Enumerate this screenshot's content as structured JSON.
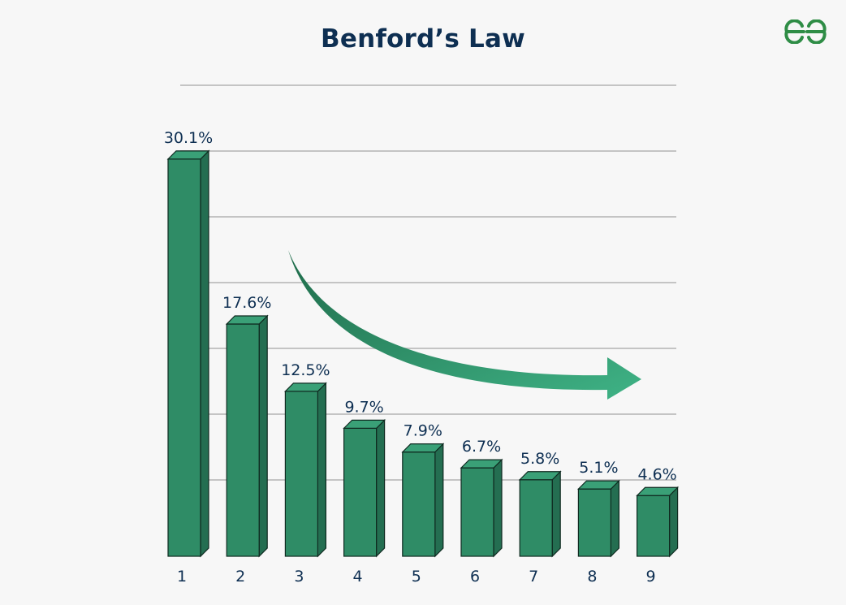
{
  "page": {
    "title": "Benford’s Law",
    "logo_icon": "geeksforgeeks-logo-icon"
  },
  "colors": {
    "bar_front": "#2f8c66",
    "bar_top": "#3aa077",
    "bar_side": "#246e51",
    "bar_edge": "#0f2a20",
    "grid": "#c4c4c4",
    "text": "#0e2f52",
    "arrow_start": "#1f6b4a",
    "arrow_end": "#3fb386",
    "logo": "#2f8d46"
  },
  "chart_data": {
    "type": "bar",
    "title": "Benford’s Law",
    "categories": [
      "1",
      "2",
      "3",
      "4",
      "5",
      "6",
      "7",
      "8",
      "9"
    ],
    "values": [
      30.1,
      17.6,
      12.5,
      9.7,
      7.9,
      6.7,
      5.8,
      5.1,
      4.6
    ],
    "data_labels": [
      "30.1%",
      "17.6%",
      "12.5%",
      "9.7%",
      "7.9%",
      "6.7%",
      "5.8%",
      "5.1%",
      "4.6%"
    ],
    "value_unit": "%",
    "xlabel": "",
    "ylabel": "",
    "ylim": [
      0,
      35
    ],
    "grid": true,
    "bar_style": "3d",
    "annotation": "decreasing-trend-arrow"
  }
}
